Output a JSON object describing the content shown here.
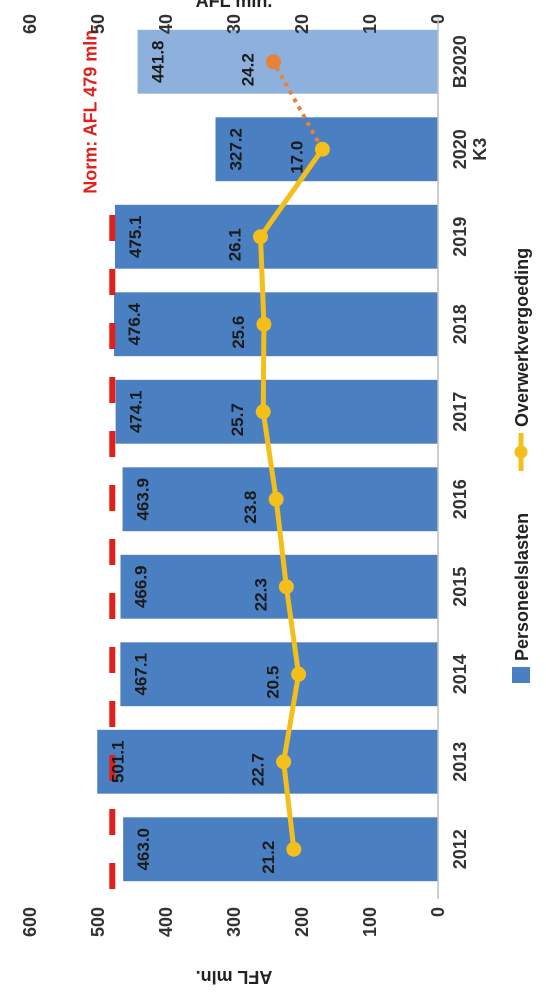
{
  "chart_data": {
    "type": "bar",
    "categories": [
      "2012",
      "2013",
      "2014",
      "2015",
      "2016",
      "2017",
      "2018",
      "2019",
      "2020 K3",
      "B2020"
    ],
    "category_lines": [
      [
        "2012"
      ],
      [
        "2013"
      ],
      [
        "2014"
      ],
      [
        "2015"
      ],
      [
        "2016"
      ],
      [
        "2017"
      ],
      [
        "2018"
      ],
      [
        "2019"
      ],
      [
        "2020",
        "K3"
      ],
      [
        "B2020"
      ]
    ],
    "series": [
      {
        "name": "Personeelslasten",
        "type": "bar",
        "axis": "left",
        "values": [
          463.0,
          501.1,
          467.1,
          466.9,
          463.9,
          474.1,
          476.4,
          475.1,
          327.2,
          441.8
        ],
        "labels": [
          "463.0",
          "501.1",
          "467.1",
          "466.9",
          "463.9",
          "474.1",
          "476.4",
          "475.1",
          "327.2",
          "441.8"
        ],
        "color": "#4a7fc1",
        "budget_color": "#8eb0dc"
      },
      {
        "name": "Overwerkvergoeding",
        "type": "line",
        "axis": "right",
        "values": [
          21.2,
          22.7,
          20.5,
          22.3,
          23.8,
          25.7,
          25.6,
          26.1,
          17.0,
          24.2
        ],
        "labels": [
          "21.2",
          "22.7",
          "20.5",
          "22.3",
          "23.8",
          "25.7",
          "25.6",
          "26.1",
          "17.0",
          "24.2"
        ],
        "color": "#f5bf1b",
        "budget_color": "#e6823a"
      }
    ],
    "left_axis": {
      "label": "AFL mln.",
      "ticks": [
        "0",
        "100",
        "200",
        "300",
        "400",
        "500",
        "600"
      ],
      "ylim": [
        0,
        600
      ]
    },
    "right_axis": {
      "label": "AFL mln.",
      "ticks": [
        "0",
        "10",
        "20",
        "30",
        "40",
        "50",
        "60"
      ],
      "ylim": [
        0,
        60
      ]
    },
    "norm": {
      "value": 479,
      "label": "Norm: AFL 479 mln.",
      "color": "#e0201b"
    },
    "legend": [
      "Personeelslasten",
      "Overwerkvergoeding"
    ],
    "orientation": "rotated 90 degrees counter-clockwise"
  }
}
